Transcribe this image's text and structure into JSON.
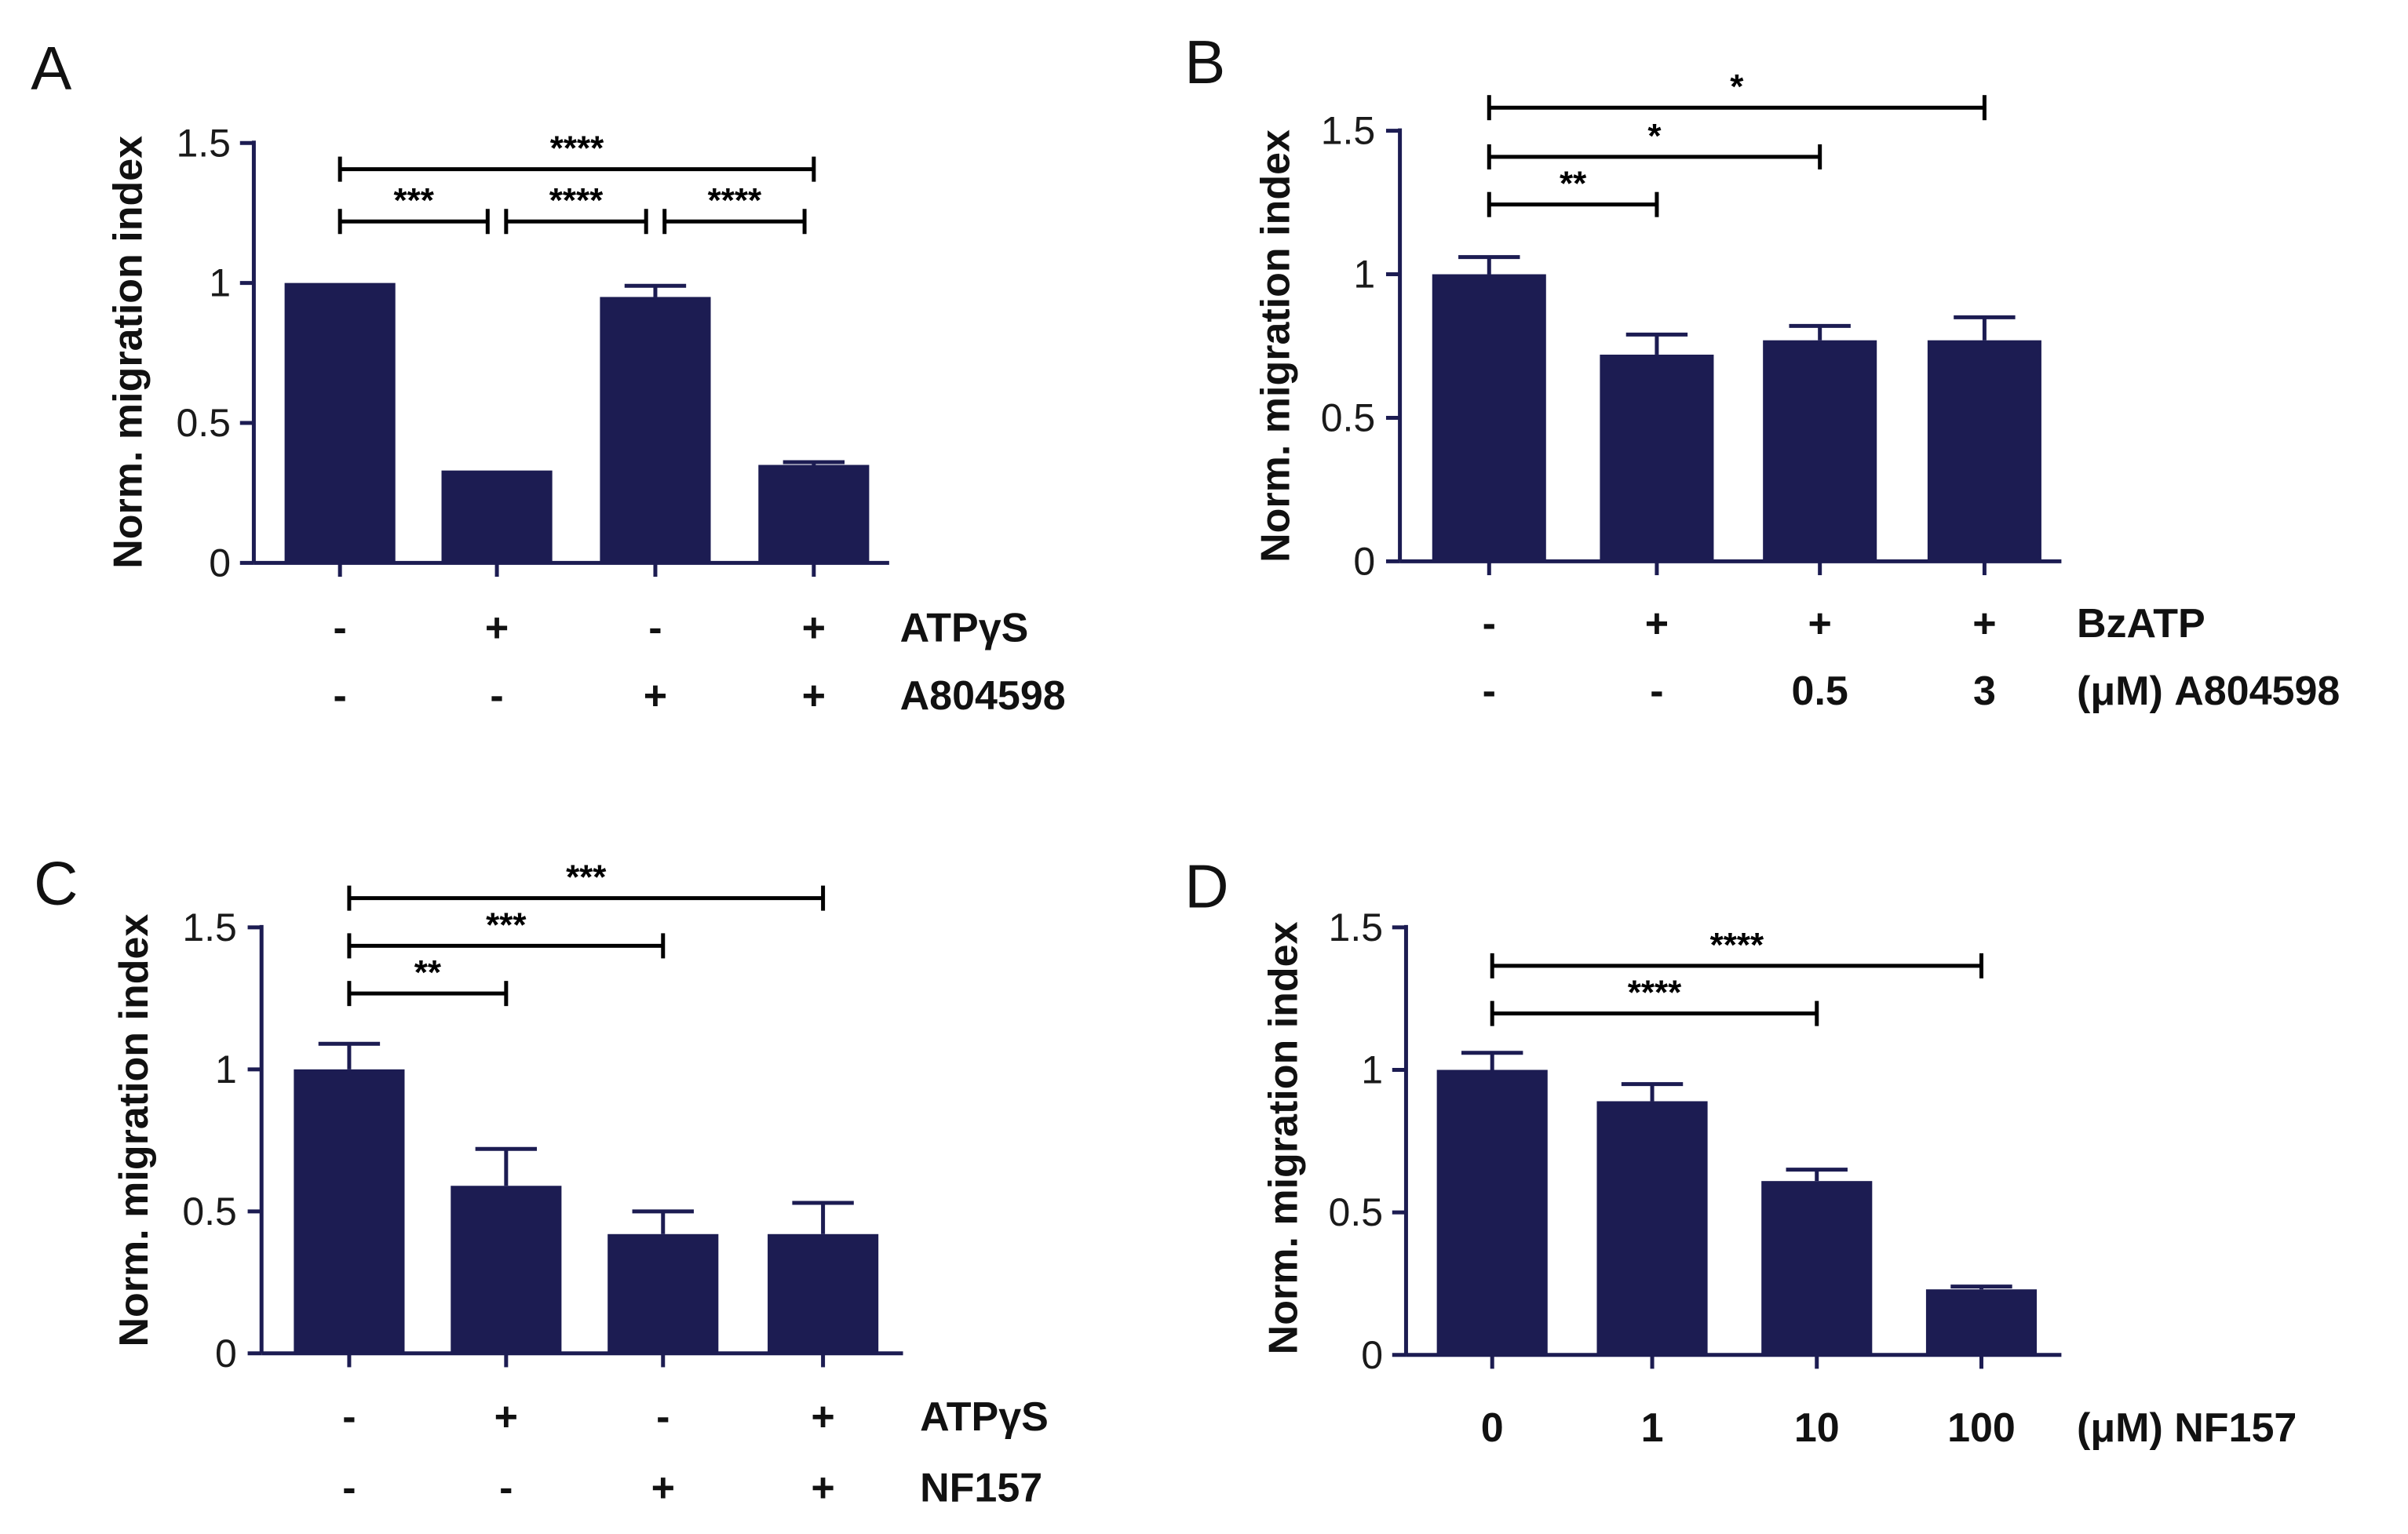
{
  "colors": {
    "bar": "#1c1c52",
    "axis": "#1c1c52",
    "text": "#111111"
  },
  "chart_data": [
    {
      "panel": "A",
      "type": "bar",
      "ylabel": "Norm. migration index",
      "ylim": [
        0,
        1.5
      ],
      "yticks": [
        {
          "value": 0,
          "label": "0"
        },
        {
          "value": 0.5,
          "label": "0.5"
        },
        {
          "value": 1,
          "label": "1"
        },
        {
          "value": 1.5,
          "label": "1.5"
        }
      ],
      "values": [
        1.0,
        0.33,
        0.95,
        0.35
      ],
      "errors": [
        0.0,
        0.0,
        0.04,
        0.01
      ],
      "condition_rows": [
        {
          "name": "ATPγS",
          "cells": [
            "-",
            "+",
            "-",
            "+"
          ]
        },
        {
          "name": "A804598",
          "cells": [
            "-",
            "-",
            "+",
            "+"
          ]
        }
      ],
      "significance": [
        {
          "from": 0,
          "to": 3,
          "label": "****",
          "y": 1.4
        },
        {
          "from": 0,
          "to": 1,
          "label": "***",
          "y": 1.22
        },
        {
          "from": 1,
          "to": 2,
          "label": "****",
          "y": 1.22
        },
        {
          "from": 2,
          "to": 3,
          "label": "****",
          "y": 1.22
        }
      ]
    },
    {
      "panel": "B",
      "type": "bar",
      "ylabel": "Norm. migration index",
      "ylim": [
        0,
        1.5
      ],
      "yticks": [
        {
          "value": 0,
          "label": "0"
        },
        {
          "value": 0.5,
          "label": "0.5"
        },
        {
          "value": 1,
          "label": "1"
        },
        {
          "value": 1.5,
          "label": "1.5"
        }
      ],
      "values": [
        1.0,
        0.72,
        0.77,
        0.77
      ],
      "errors": [
        0.06,
        0.07,
        0.05,
        0.08
      ],
      "condition_rows": [
        {
          "name": "BzATP",
          "cells": [
            "-",
            "+",
            "+",
            "+"
          ]
        },
        {
          "name": "(μM) A804598",
          "cells": [
            "-",
            "-",
            "0.5",
            "3"
          ]
        }
      ],
      "significance": [
        {
          "from": 0,
          "to": 3,
          "label": "*",
          "y": 1.55
        },
        {
          "from": 0,
          "to": 2,
          "label": "*",
          "y": 1.4
        },
        {
          "from": 0,
          "to": 1,
          "label": "**",
          "y": 1.22
        }
      ]
    },
    {
      "panel": "C",
      "type": "bar",
      "ylabel": "Norm. migration index",
      "ylim": [
        0,
        1.5
      ],
      "yticks": [
        {
          "value": 0,
          "label": "0"
        },
        {
          "value": 0.5,
          "label": "0.5"
        },
        {
          "value": 1,
          "label": "1"
        },
        {
          "value": 1.5,
          "label": "1.5"
        }
      ],
      "values": [
        1.0,
        0.59,
        0.42,
        0.42
      ],
      "errors": [
        0.09,
        0.13,
        0.08,
        0.11
      ],
      "condition_rows": [
        {
          "name": "ATPγS",
          "cells": [
            "-",
            "+",
            "-",
            "+"
          ]
        },
        {
          "name": "NF157",
          "cells": [
            "-",
            "-",
            "+",
            "+"
          ]
        }
      ],
      "significance": [
        {
          "from": 0,
          "to": 3,
          "label": "***",
          "y": 1.61
        },
        {
          "from": 0,
          "to": 2,
          "label": "***",
          "y": 1.43
        },
        {
          "from": 0,
          "to": 1,
          "label": "**",
          "y": 1.26
        }
      ]
    },
    {
      "panel": "D",
      "type": "bar",
      "ylabel": "Norm. migration index",
      "ylim": [
        0,
        1.5
      ],
      "yticks": [
        {
          "value": 0,
          "label": "0"
        },
        {
          "value": 0.5,
          "label": "0.5"
        },
        {
          "value": 1,
          "label": "1"
        },
        {
          "value": 1.5,
          "label": "1.5"
        }
      ],
      "values": [
        1.0,
        0.89,
        0.61,
        0.23
      ],
      "errors": [
        0.06,
        0.06,
        0.04,
        0.01
      ],
      "condition_rows": [
        {
          "name": "(μM) NF157",
          "cells": [
            "0",
            "1",
            "10",
            "100"
          ]
        }
      ],
      "significance": [
        {
          "from": 0,
          "to": 3,
          "label": "****",
          "y": 1.37
        },
        {
          "from": 0,
          "to": 2,
          "label": "****",
          "y": 1.2
        }
      ]
    }
  ]
}
